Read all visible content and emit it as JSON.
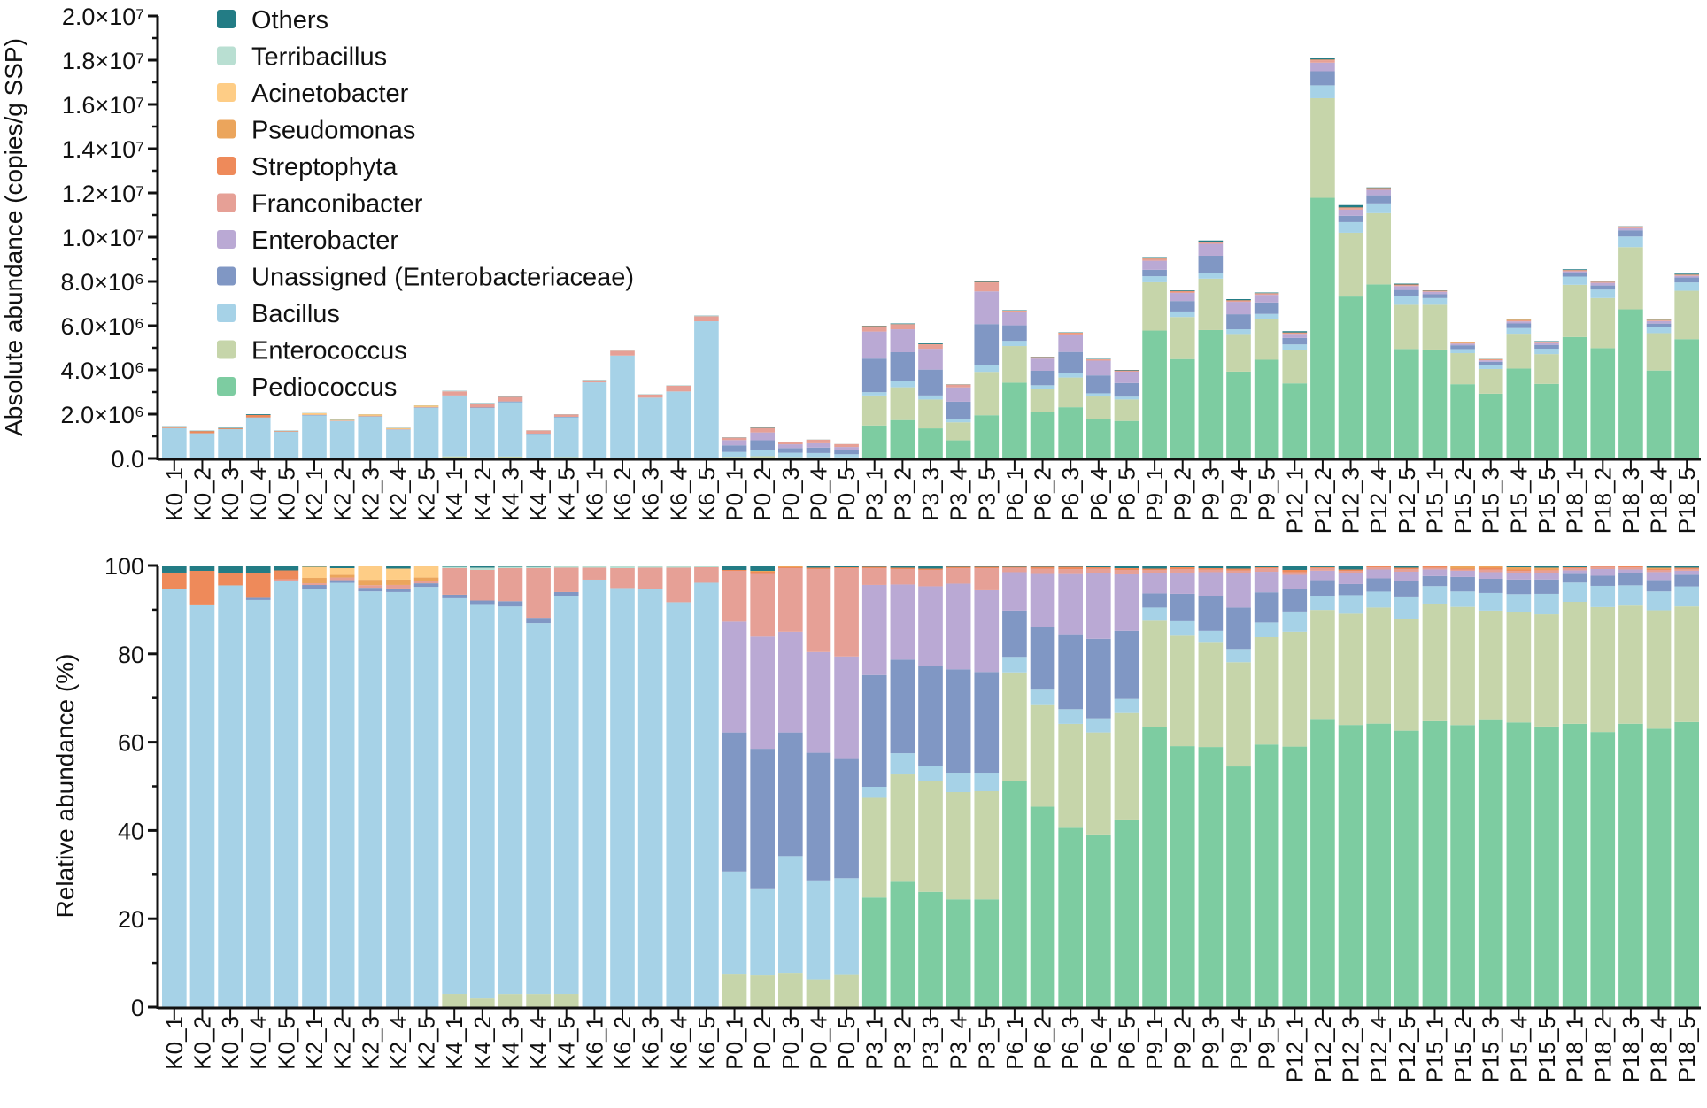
{
  "chart_data": [
    {
      "type": "bar",
      "stacked": true,
      "title": "",
      "ylabel": "Absolute abundance (copies/g SSP)",
      "xlabel": "",
      "ylim": [
        0,
        20000000
      ],
      "yticks": [
        0,
        2000000,
        4000000,
        6000000,
        8000000,
        10000000,
        12000000,
        14000000,
        16000000,
        18000000,
        20000000
      ],
      "ytick_labels": [
        "0.0",
        "2.0×10⁶",
        "4.0×10⁶",
        "6.0×10⁶",
        "8.0×10⁶",
        "1.0×10⁷",
        "1.2×10⁷",
        "1.4×10⁷",
        "1.6×10⁷",
        "1.8×10⁷",
        "2.0×10⁷"
      ],
      "legend_position": "top-left",
      "totals_note": "Absolute stacks = total × relative fraction of the matching sample in the relative chart",
      "totals": [
        1450000,
        1250000,
        1380000,
        2000000,
        1250000,
        2050000,
        1750000,
        2000000,
        1380000,
        2400000,
        3050000,
        2500000,
        2800000,
        1270000,
        2000000,
        3550000,
        4900000,
        2900000,
        3300000,
        6450000,
        950000,
        1400000,
        750000,
        850000,
        650000,
        6000000,
        6100000,
        5200000,
        3350000,
        8000000,
        6700000,
        4600000,
        5700000,
        4500000,
        4000000,
        9100000,
        7600000,
        9850000,
        7200000,
        7500000,
        5750000,
        18100000,
        11450000,
        12250000,
        7900000,
        7600000,
        5250000,
        4500000,
        6300000,
        5300000,
        8550000,
        8000000,
        10500000,
        6300000,
        8350000
      ]
    },
    {
      "type": "bar",
      "stacked": true,
      "title": "",
      "ylabel": "Relative abundance (%)",
      "xlabel": "",
      "ylim": [
        0,
        100
      ],
      "yticks": [
        0,
        20,
        40,
        60,
        80,
        100
      ],
      "ytick_labels": [
        "0",
        "20",
        "40",
        "60",
        "80",
        "100"
      ],
      "categories": [
        "K0_1",
        "K0_2",
        "K0_3",
        "K0_4",
        "K0_5",
        "K2_1",
        "K2_2",
        "K2_3",
        "K2_4",
        "K2_5",
        "K4_1",
        "K4_2",
        "K4_3",
        "K4_4",
        "K4_5",
        "K6_1",
        "K6_2",
        "K6_3",
        "K6_4",
        "K6_5",
        "P0_1",
        "P0_2",
        "P0_3",
        "P0_4",
        "P0_5",
        "P3_1",
        "P3_2",
        "P3_3",
        "P3_4",
        "P3_5",
        "P6_1",
        "P6_2",
        "P6_3",
        "P6_4",
        "P6_5",
        "P9_1",
        "P9_2",
        "P9_3",
        "P9_4",
        "P9_5",
        "P12_1",
        "P12_2",
        "P12_3",
        "P12_4",
        "P12_5",
        "P15_1",
        "P15_2",
        "P15_3",
        "P15_4",
        "P15_5",
        "P18_1",
        "P18_2",
        "P18_3",
        "P18_4",
        "P18_5"
      ],
      "series": [
        {
          "name": "Pediococcus",
          "color": "#7DCCA1",
          "values": [
            0,
            0,
            0,
            0,
            0,
            0,
            0,
            0,
            0,
            0,
            0,
            0,
            0,
            0,
            0,
            0,
            0,
            0,
            0,
            0,
            0,
            0,
            0,
            0,
            0,
            24.8,
            28.4,
            26.1,
            24.4,
            24.4,
            51.1,
            45.4,
            40.2,
            39.1,
            42.3,
            63.5,
            59.1,
            58.9,
            54.5,
            59.0,
            59.0,
            66.7,
            63.9,
            64.2,
            62.6,
            65.4,
            64.2,
            65.0,
            64.8,
            64.5,
            64.8,
            62.3,
            64.5,
            63.5,
            65.6
          ]
        },
        {
          "name": "Enterococcus",
          "color": "#C6D5AA",
          "values": [
            0,
            0,
            0,
            0,
            0,
            0,
            0,
            0,
            0,
            0,
            3.0,
            2.0,
            3.0,
            3.0,
            3.0,
            0,
            0,
            0,
            0,
            0,
            7.4,
            7.2,
            7.6,
            6.3,
            7.3,
            22.6,
            24.3,
            25.1,
            24.3,
            24.5,
            24.7,
            23.0,
            23.3,
            23.1,
            24.3,
            24.0,
            25.0,
            23.6,
            23.6,
            24.1,
            26.0,
            25.5,
            25.2,
            26.3,
            25.3,
            26.9,
            26.9,
            24.8,
            25.1,
            25.8,
            27.9,
            28.3,
            26.9,
            27.0,
            26.6
          ]
        },
        {
          "name": "Bacillus",
          "color": "#A6D2E7",
          "values": [
            94.7,
            91.0,
            95.5,
            92.2,
            96.4,
            94.5,
            95.5,
            93.4,
            94.0,
            94.5,
            89.6,
            90.0,
            88.1,
            84.3,
            90.0,
            96.8,
            94.9,
            94.7,
            91.7,
            96.1,
            23.3,
            19.7,
            26.6,
            22.4,
            21.9,
            2.5,
            4.8,
            3.5,
            4.2,
            4.0,
            3.5,
            3.5,
            3.3,
            3.2,
            3.2,
            3.0,
            3.3,
            2.7,
            3.0,
            3.3,
            4.6,
            3.3,
            4.2,
            3.6,
            4.9,
            4.0,
            3.5,
            4.0,
            4.1,
            4.7,
            4.4,
            4.8,
            4.6,
            4.3,
            4.6
          ]
        },
        {
          "name": "Unassigned (Enterobacteriaceae)",
          "color": "#8097C4",
          "values": [
            0,
            0,
            0,
            0.5,
            0,
            0.8,
            0.6,
            0.8,
            0.8,
            0.8,
            0.8,
            1.0,
            1.2,
            1.2,
            1.0,
            0,
            0,
            0,
            0,
            0,
            31.5,
            31.6,
            28.0,
            28.9,
            27.0,
            25.3,
            21.2,
            22.5,
            23.6,
            23.0,
            10.5,
            14.2,
            16.8,
            18.0,
            15.4,
            3.2,
            6.2,
            7.8,
            9.4,
            6.8,
            5.1,
            3.6,
            2.5,
            3.0,
            3.6,
            2.3,
            3.3,
            3.2,
            3.3,
            3.3,
            2.0,
            2.3,
            2.7,
            2.6,
            2.7
          ]
        },
        {
          "name": "Enterobacter",
          "color": "#BAA9D4",
          "values": [
            0,
            0,
            0,
            0,
            0,
            0,
            0,
            0,
            0,
            0,
            0,
            0,
            0,
            0,
            0,
            0,
            0,
            0,
            0,
            0,
            25.1,
            25.4,
            22.8,
            22.8,
            23.2,
            20.4,
            17.0,
            18.1,
            19.4,
            18.5,
            8.7,
            12.0,
            13.5,
            14.8,
            12.8,
            4.5,
            4.8,
            5.5,
            7.8,
            4.6,
            3.2,
            2.2,
            2.4,
            2.0,
            2.2,
            1.5,
            1.4,
            1.5,
            1.5,
            1.5,
            0.8,
            1.5,
            0.9,
            1.8,
            0.9
          ]
        },
        {
          "name": "Franconibacter",
          "color": "#E6A096",
          "values": [
            0,
            0,
            0,
            0,
            0.5,
            0.4,
            0.6,
            0.6,
            0.8,
            0.5,
            6.0,
            7.0,
            7.5,
            11.3,
            5.5,
            2.7,
            4.5,
            4.8,
            7.8,
            3.5,
            11.5,
            14.2,
            14.4,
            18.8,
            20.0,
            3.8,
            3.5,
            3.7,
            3.5,
            5.0,
            1.0,
            1.2,
            1.1,
            1.1,
            1.0,
            0.8,
            0.8,
            0.6,
            0.6,
            0.8,
            0.6,
            0.6,
            0.6,
            0.5,
            0.6,
            0.4,
            0.3,
            0.6,
            0.5,
            0.6,
            0.5,
            0.5,
            0.5,
            0.5,
            0.4
          ]
        },
        {
          "name": "Streptophyta",
          "color": "#EE8A5A",
          "values": [
            3.7,
            7.8,
            2.8,
            5.5,
            2.0,
            0,
            0,
            0,
            0,
            0,
            0,
            0,
            0,
            0,
            0,
            0,
            0,
            0,
            0,
            0,
            0.2,
            0.5,
            0.2,
            0.3,
            0.2,
            0.3,
            0.3,
            0.3,
            0.3,
            0.3,
            0.2,
            0.4,
            0.5,
            0.3,
            0.4,
            0.3,
            0.4,
            0.3,
            0.4,
            0.2,
            0.5,
            0.2,
            0.3,
            0.2,
            0.3,
            0.3,
            0.2,
            0.4,
            0.3,
            0.2,
            0.2,
            0.2,
            0.3,
            0.2,
            0.3
          ]
        },
        {
          "name": "Pseudomonas",
          "color": "#EBA55C",
          "values": [
            0,
            0,
            0,
            0,
            0,
            1.2,
            0.6,
            1.2,
            1.2,
            0.8,
            0,
            0,
            0,
            0,
            0,
            0,
            0,
            0,
            0,
            0,
            0,
            0.2,
            0.2,
            0,
            0,
            0,
            0,
            0,
            0,
            0,
            0,
            0,
            0,
            0,
            0,
            0,
            0,
            0,
            0,
            0,
            0,
            0,
            0,
            0,
            0,
            0,
            0.5,
            0.3,
            0.5,
            0.4,
            0,
            0,
            0,
            0.3,
            0
          ]
        },
        {
          "name": "Acinetobacter",
          "color": "#FECD86",
          "values": [
            0,
            0,
            0,
            0,
            0,
            2.5,
            1.5,
            3.0,
            2.5,
            2.5,
            0,
            0,
            0,
            0,
            0,
            0,
            0,
            0,
            0,
            0,
            0,
            0,
            0,
            0,
            0,
            0,
            0,
            0,
            0,
            0,
            0,
            0,
            0,
            0,
            0,
            0,
            0,
            0,
            0,
            0,
            0,
            0,
            0,
            0,
            0,
            0,
            0,
            0,
            0,
            0,
            0,
            0,
            0,
            0,
            0
          ]
        },
        {
          "name": "Terribacillus",
          "color": "#B9DFD2",
          "values": [
            0,
            0,
            0,
            0,
            0,
            0,
            0,
            0,
            0,
            0,
            0.3,
            0.5,
            0.3,
            0.3,
            0.3,
            0.3,
            0.4,
            0.3,
            0.3,
            0.2,
            0,
            0,
            0,
            0,
            0,
            0,
            0,
            0,
            0,
            0,
            0,
            0,
            0,
            0,
            0,
            0,
            0,
            0,
            0,
            0,
            0,
            0,
            0,
            0,
            0,
            0,
            0,
            0,
            0,
            0,
            0,
            0,
            0,
            0,
            0
          ]
        },
        {
          "name": "Others",
          "color": "#237C85",
          "values": [
            1.6,
            1.2,
            1.7,
            1.8,
            1.1,
            0.3,
            0.6,
            0.2,
            0.7,
            0.2,
            0.3,
            0.5,
            0.3,
            0.3,
            0.2,
            0.2,
            0.2,
            0.2,
            0.2,
            0.2,
            1.0,
            1.2,
            0.2,
            0.5,
            0.4,
            0.3,
            0.5,
            0.7,
            0.3,
            0.3,
            0.3,
            0.3,
            0.3,
            0.4,
            0.6,
            0.7,
            0.4,
            0.6,
            0.7,
            0.4,
            1.0,
            0.4,
            0.9,
            0.2,
            0.5,
            0.2,
            0.2,
            0.2,
            0.4,
            0.5,
            0.4,
            0.1,
            0.1,
            0.5,
            0.5
          ]
        }
      ]
    }
  ],
  "legend": {
    "position": "top-left",
    "items": [
      {
        "label": "Others",
        "color": "#237C85"
      },
      {
        "label": "Terribacillus",
        "color": "#B9DFD2"
      },
      {
        "label": "Acinetobacter",
        "color": "#FECD86"
      },
      {
        "label": "Pseudomonas",
        "color": "#EBA55C"
      },
      {
        "label": "Streptophyta",
        "color": "#EE8A5A"
      },
      {
        "label": "Franconibacter",
        "color": "#E6A096"
      },
      {
        "label": "Enterobacter",
        "color": "#BAA9D4"
      },
      {
        "label": "Unassigned (Enterobacteriaceae)",
        "color": "#8097C4"
      },
      {
        "label": "Bacillus",
        "color": "#A6D2E7"
      },
      {
        "label": "Enterococcus",
        "color": "#C6D5AA"
      },
      {
        "label": "Pediococcus",
        "color": "#7DCCA1"
      }
    ]
  }
}
